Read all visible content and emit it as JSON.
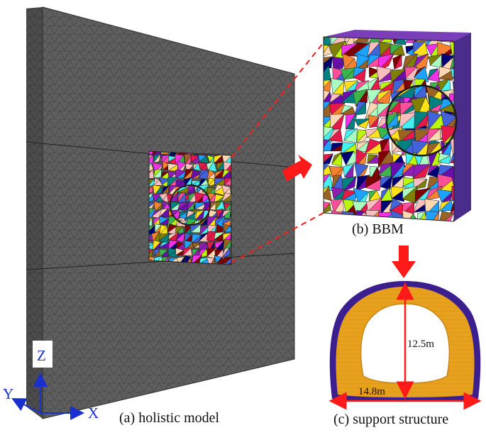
{
  "captions": {
    "holistic": "(a) holistic model",
    "bbm": "(b) BBM",
    "support": "(c) support structure"
  },
  "dimensions": {
    "height": "12.5m",
    "width": "14.8m"
  },
  "axes": {
    "x": "X",
    "y": "Y",
    "z": "Z"
  },
  "colors": {
    "mesh_grey": "#5c5c5c",
    "arrow_red": "#ff1a1a",
    "lining_yellow": "#e8a11c",
    "lining_purple": "#3b1f8f",
    "axis_blue": "#1a2fd0"
  }
}
